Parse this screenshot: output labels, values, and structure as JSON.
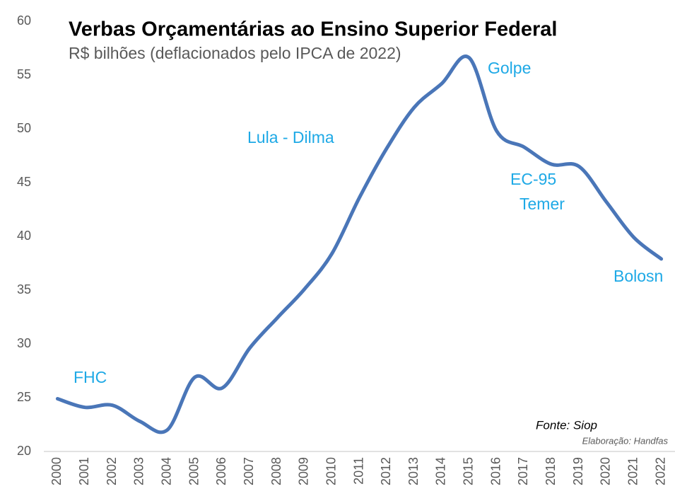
{
  "chart_data": {
    "type": "line",
    "title": "Verbas Orçamentárias ao Ensino Superior Federal",
    "subtitle": "R$ bilhões (deflacionados pelo IPCA de 2022)",
    "categories": [
      "2000",
      "2001",
      "2002",
      "2003",
      "2004",
      "2005",
      "2006",
      "2007",
      "2008",
      "2009",
      "2010",
      "2011",
      "2012",
      "2013",
      "2014",
      "2015",
      "2016",
      "2017",
      "2018",
      "2019",
      "2020",
      "2021",
      "2022"
    ],
    "series": [
      {
        "name": "Verbas",
        "color": "#4a76b8",
        "values": [
          24.9,
          24.1,
          24.3,
          22.8,
          22.0,
          26.9,
          25.9,
          29.6,
          32.4,
          35.1,
          38.4,
          43.6,
          48.2,
          52.0,
          54.2,
          56.6,
          49.8,
          48.3,
          46.7,
          46.5,
          43.2,
          39.9,
          37.9
        ]
      }
    ],
    "ylim": [
      20,
      60
    ],
    "yticks": [
      20,
      25,
      30,
      35,
      40,
      45,
      50,
      55,
      60
    ],
    "grid": false,
    "annotations": [
      "FHC",
      "Lula - Dilma",
      "Golpe",
      "EC-95",
      "Temer",
      "Bolosn"
    ],
    "source": "Fonte: Siop",
    "credit": "Elaboração: Handfas"
  }
}
